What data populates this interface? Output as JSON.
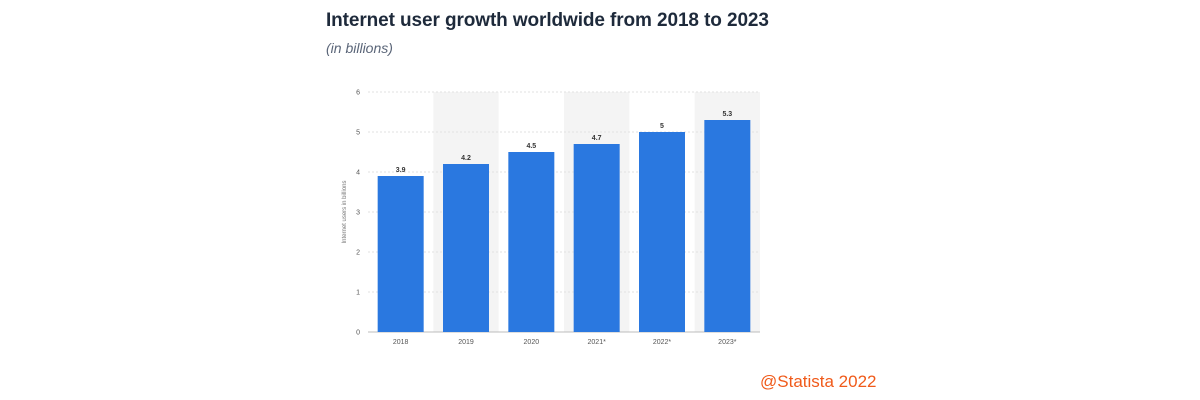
{
  "header": {
    "title": "Internet user growth worldwide from 2018 to 2023",
    "subtitle": "(in billions)"
  },
  "footer": {
    "credit": "@Statista 2022"
  },
  "colors": {
    "bar": "#2a78e0",
    "band": "#f4f4f4",
    "grid": "#e2e2e2",
    "title": "#1e2a3b",
    "credit": "#f05a1a"
  },
  "chart_data": {
    "type": "bar",
    "title": "Internet user growth worldwide from 2018 to 2023",
    "subtitle": "(in billions)",
    "xlabel": "",
    "ylabel": "Internet users in billions",
    "categories": [
      "2018",
      "2019",
      "2020",
      "2021*",
      "2022*",
      "2023*"
    ],
    "values": [
      3.9,
      4.2,
      4.5,
      4.7,
      5,
      5.3
    ],
    "value_labels": [
      "3.9",
      "4.2",
      "4.5",
      "4.7",
      "5",
      "5.3"
    ],
    "ylim": [
      0,
      6
    ],
    "yticks": [
      0,
      1,
      2,
      3,
      4,
      5,
      6
    ],
    "grid": true,
    "legend": "none"
  }
}
